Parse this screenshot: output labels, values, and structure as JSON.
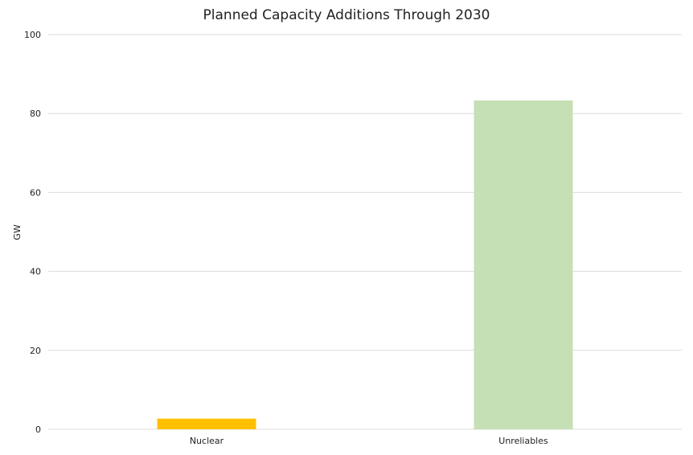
{
  "chart_data": {
    "type": "bar",
    "title": "Planned Capacity Additions Through 2030",
    "xlabel": "",
    "ylabel": "GW",
    "categories": [
      "Nuclear",
      "Unreliables"
    ],
    "values": [
      2.7,
      83.3
    ],
    "bar_colors": [
      "#FFC000",
      "#C5E0B4"
    ],
    "ylim": [
      0,
      100
    ],
    "yticks": [
      0,
      20,
      40,
      60,
      80,
      100
    ],
    "grid": true,
    "legend": "none"
  }
}
